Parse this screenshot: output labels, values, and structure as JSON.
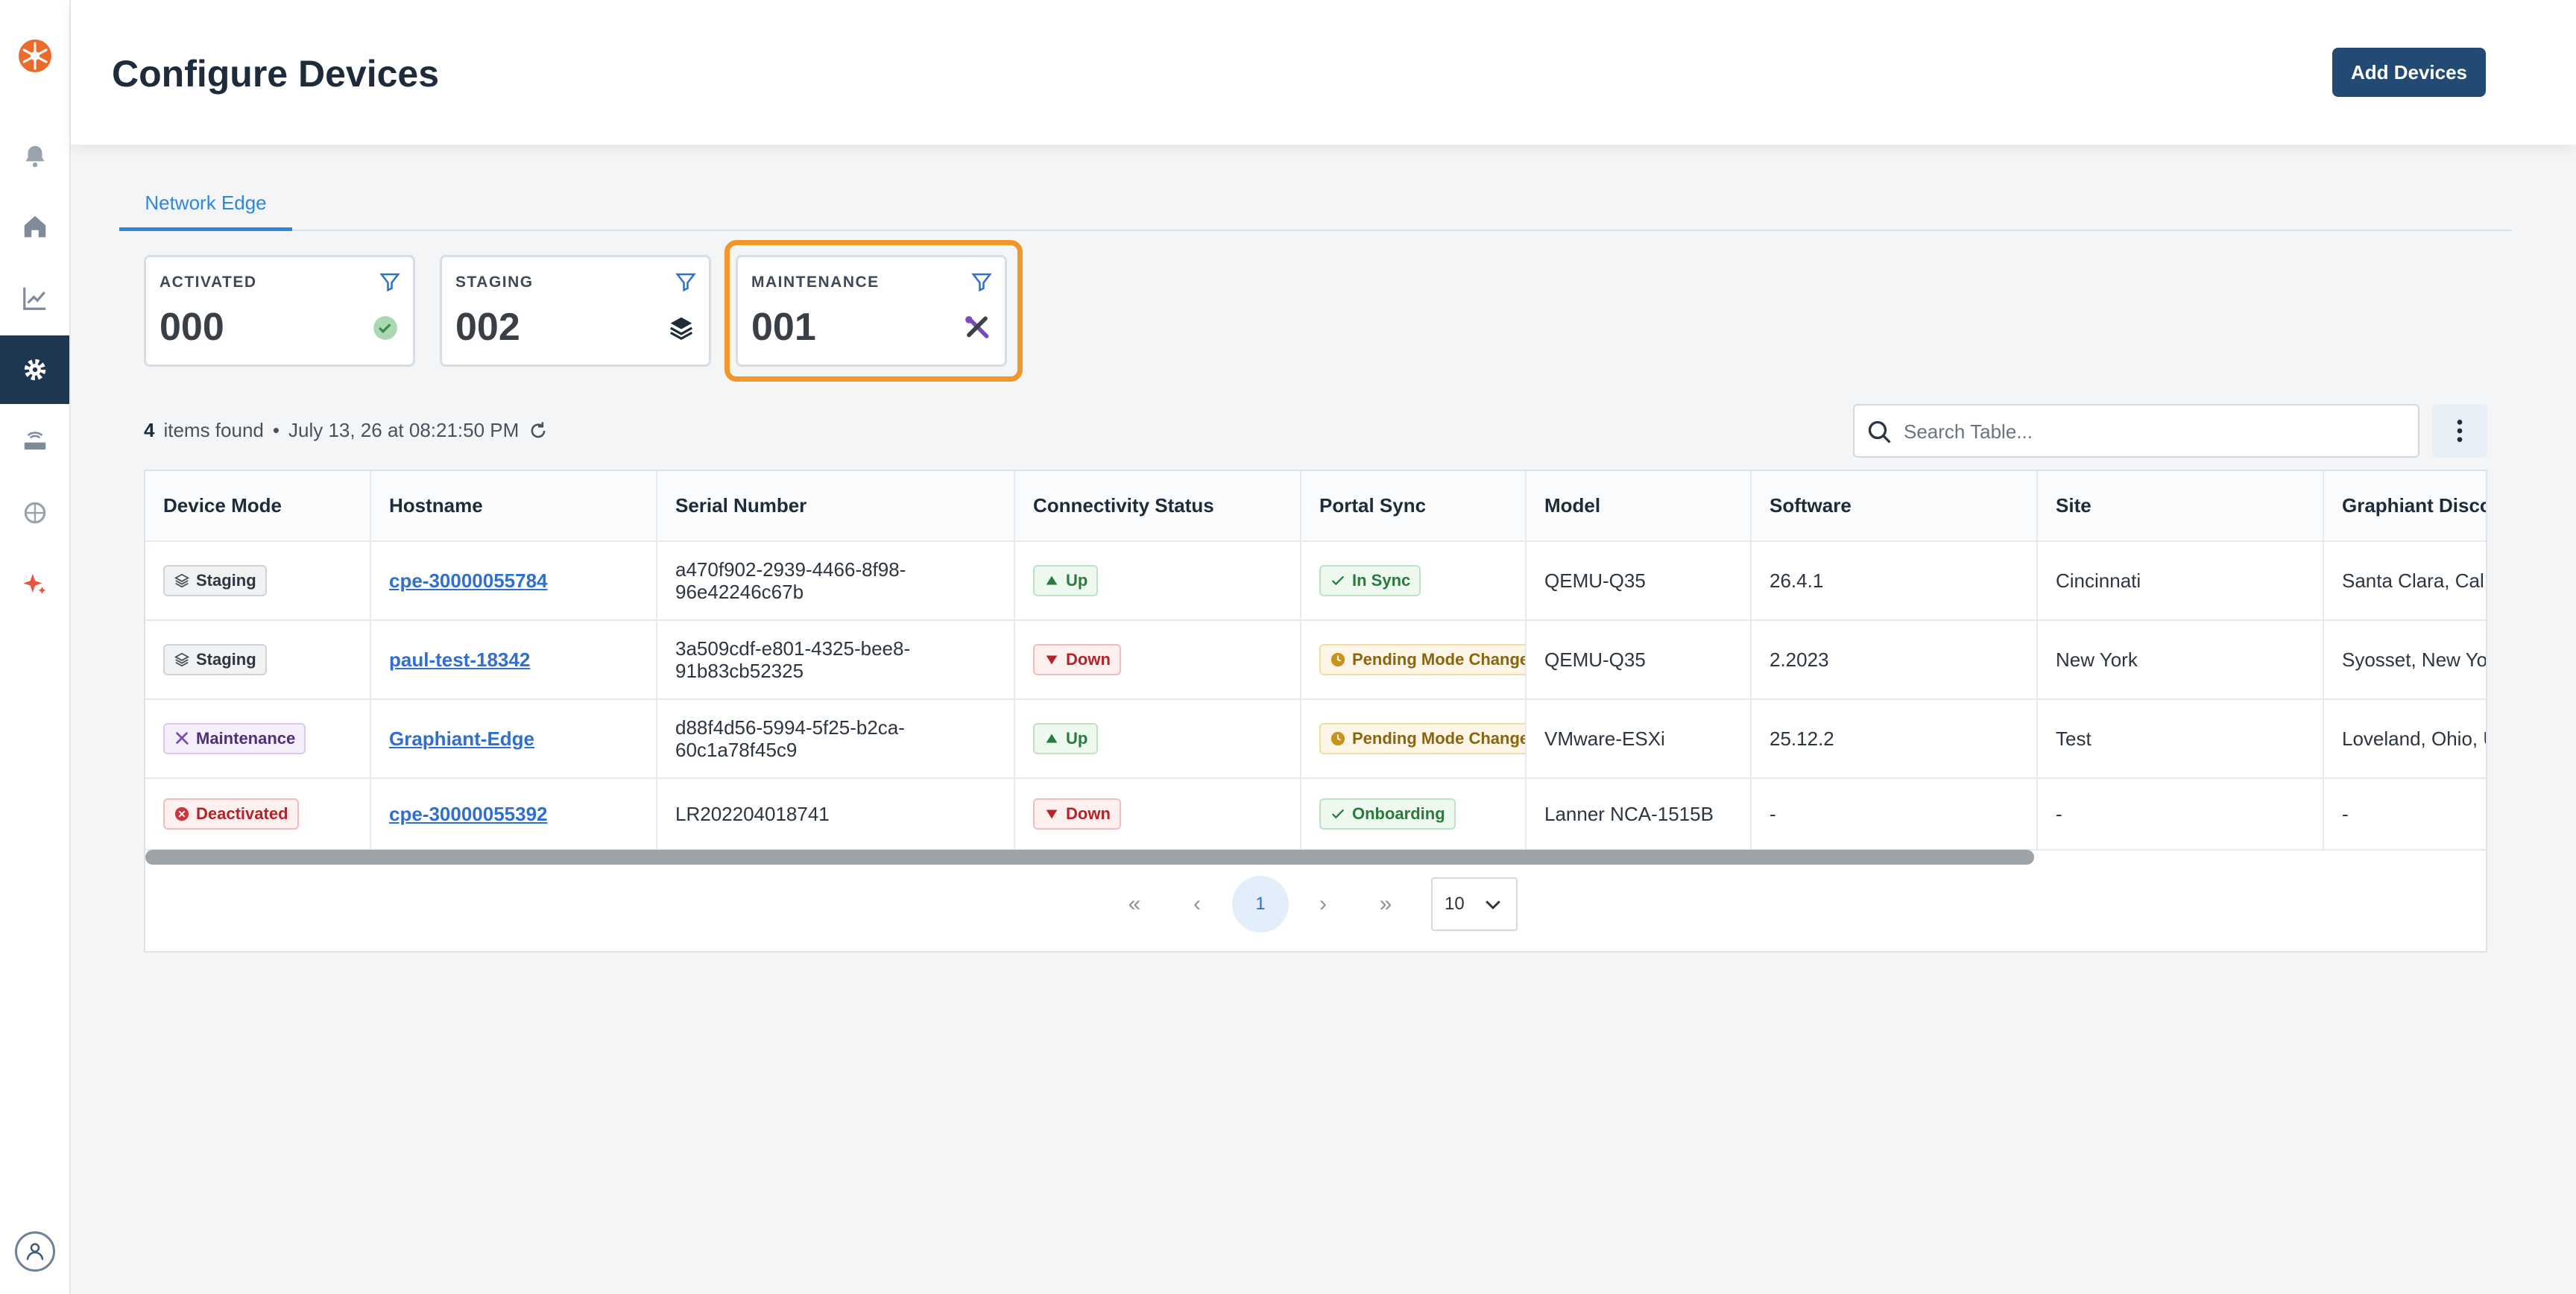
{
  "header": {
    "title": "Configure Devices",
    "add_button": "Add Devices"
  },
  "tabs": [
    {
      "label": "Network Edge",
      "active": true
    }
  ],
  "cards": [
    {
      "label": "ACTIVATED",
      "value": "000",
      "icon": "check-circle-icon"
    },
    {
      "label": "STAGING",
      "value": "002",
      "icon": "layers-icon"
    },
    {
      "label": "MAINTENANCE",
      "value": "001",
      "icon": "tools-icon",
      "highlighted": true
    }
  ],
  "info": {
    "count": "4",
    "items_text": "items found",
    "separator": "•",
    "timestamp": "July 13, 26 at 08:21:50 PM"
  },
  "search": {
    "placeholder": "Search Table..."
  },
  "table": {
    "columns": [
      "Device Mode",
      "Hostname",
      "Serial Number",
      "Connectivity Status",
      "Portal Sync",
      "Model",
      "Software",
      "Site",
      "Graphiant Disco"
    ],
    "rows": [
      {
        "mode": "Staging",
        "hostname": "cpe-30000055784",
        "serial": "a470f902-2939-4466-8f98-96e42246c67b",
        "conn": "Up",
        "sync": "In Sync",
        "model": "QEMU-Q35",
        "software": "26.4.1",
        "site": "Cincinnati",
        "disco": "Santa Clara, Cal States"
      },
      {
        "mode": "Staging",
        "hostname": "paul-test-18342",
        "serial": "3a509cdf-e801-4325-bee8-91b83cb52325",
        "conn": "Down",
        "sync": "Pending Mode Change",
        "model": "QEMU-Q35",
        "software": "2.2023",
        "site": "New York",
        "disco": "Syosset, New Yor"
      },
      {
        "mode": "Maintenance",
        "hostname": "Graphiant-Edge",
        "serial": "d88f4d56-5994-5f25-b2ca-60c1a78f45c9",
        "conn": "Up",
        "sync": "Pending Mode Change",
        "model": "VMware-ESXi",
        "software": "25.12.2",
        "site": "Test",
        "disco": "Loveland, Ohio, U"
      },
      {
        "mode": "Deactivated",
        "hostname": "cpe-30000055392",
        "serial": "LR202204018741",
        "conn": "Down",
        "sync": "Onboarding",
        "model": "Lanner NCA-1515B",
        "software": "-",
        "site": "-",
        "disco": "-"
      }
    ]
  },
  "pagination": {
    "current_page": "1",
    "page_size": "10"
  },
  "colors": {
    "accent": "#2f86e0",
    "primary_button": "#234a72",
    "sidebar_active": "#1f3650",
    "highlight": "#f0962d"
  }
}
